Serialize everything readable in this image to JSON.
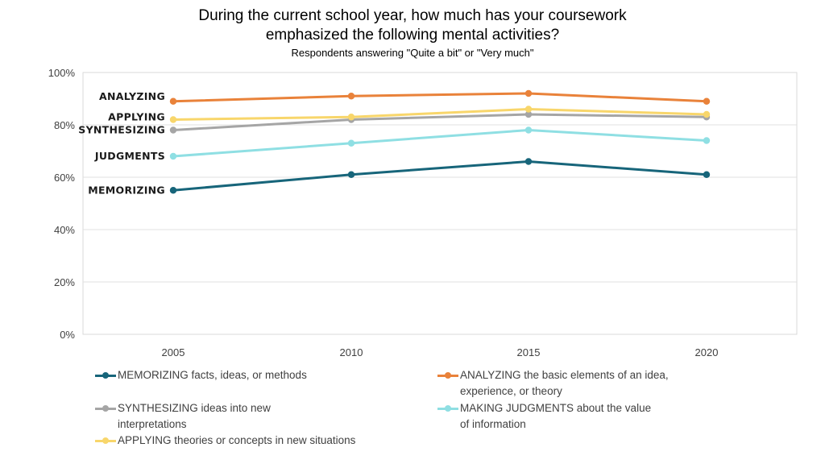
{
  "chart_data": {
    "type": "line",
    "title": "During the current school year, how much has your coursework emphasized the following mental activities?",
    "title_lines": [
      "During the current school year, how much has your coursework",
      "emphasized the following mental activities?"
    ],
    "subtitle": "Respondents answering \"Quite a bit\" or \"Very much\"",
    "x": [
      "2005",
      "2010",
      "2015",
      "2020"
    ],
    "ylim": [
      0,
      100
    ],
    "yticks": [
      "0%",
      "20%",
      "40%",
      "60%",
      "80%",
      "100%"
    ],
    "ytick_values": [
      0,
      20,
      40,
      60,
      80,
      100
    ],
    "grid": true,
    "legend_position": "bottom",
    "series": [
      {
        "name": "MEMORIZING facts, ideas, or methods",
        "label": "MEMORIZING",
        "color": "#17657a",
        "values": [
          55,
          61,
          66,
          61
        ]
      },
      {
        "name": "ANALYZING the basic elements of an idea, experience, or theory",
        "label": "ANALYZING",
        "color": "#e9823a",
        "values": [
          89,
          91,
          92,
          89
        ]
      },
      {
        "name": "SYNTHESIZING ideas into new interpretations",
        "label": "SYNTHESIZING",
        "color": "#a5a5a5",
        "values": [
          78,
          82,
          84,
          83
        ]
      },
      {
        "name": "MAKING JUDGMENTS about the value of information",
        "label": "JUDGMENTS",
        "color": "#8fdfe3",
        "values": [
          68,
          73,
          78,
          74
        ]
      },
      {
        "name": "APPLYING theories or concepts in new situations",
        "label": "APPLYING",
        "color": "#f8d66b",
        "values": [
          82,
          83,
          86,
          84
        ]
      }
    ],
    "legend": [
      {
        "series": 0,
        "lines": [
          "MEMORIZING facts, ideas, or methods"
        ]
      },
      {
        "series": 1,
        "lines": [
          "ANALYZING the basic elements of an idea,",
          "experience, or theory"
        ]
      },
      {
        "series": 2,
        "lines": [
          "SYNTHESIZING ideas into new",
          "interpretations"
        ]
      },
      {
        "series": 3,
        "lines": [
          "MAKING JUDGMENTS about the value",
          "of information"
        ]
      },
      {
        "series": 4,
        "lines": [
          "APPLYING theories or concepts in new situations"
        ]
      }
    ]
  }
}
